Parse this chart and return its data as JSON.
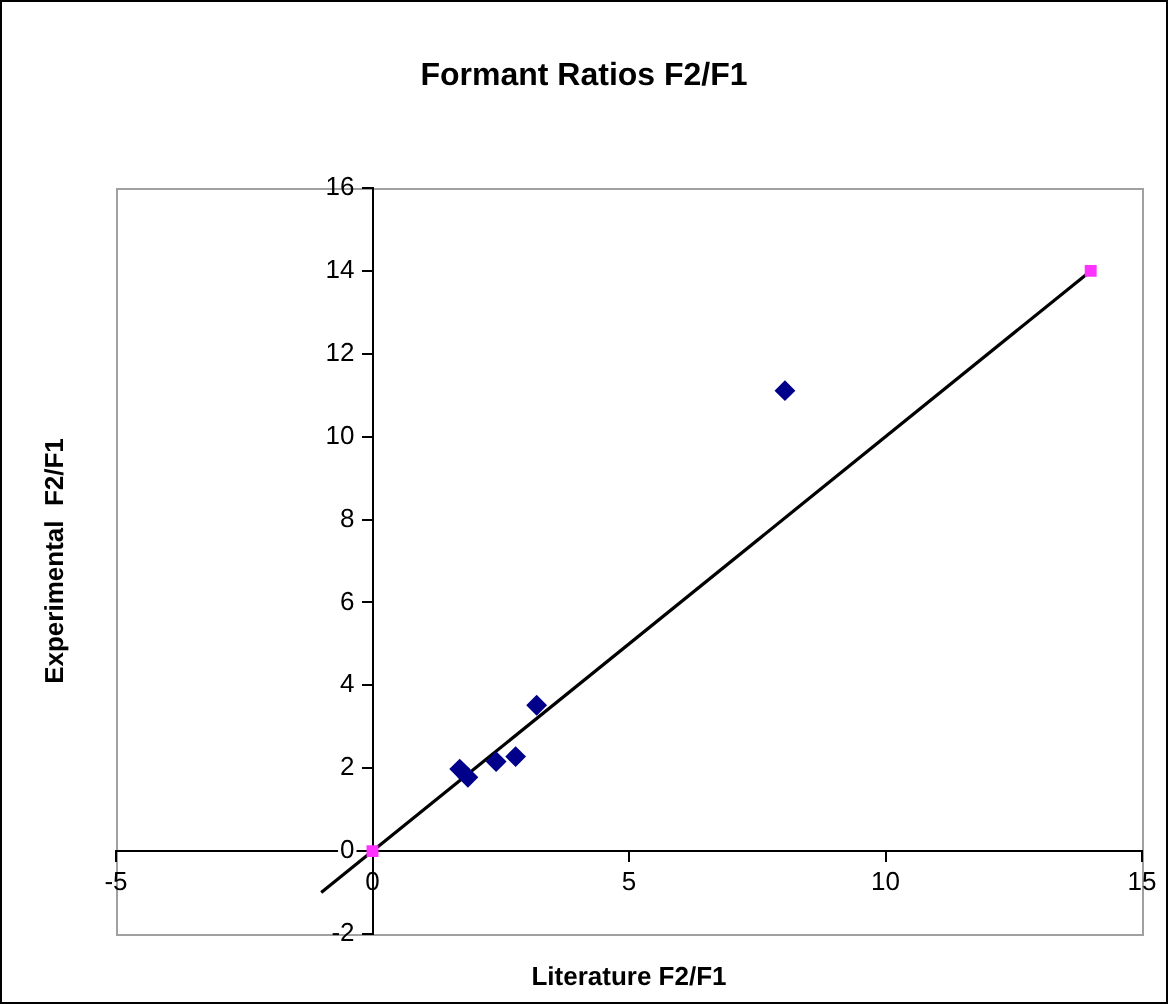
{
  "chart_data": {
    "type": "scatter",
    "title": "Formant Ratios F2/F1",
    "xlabel": "Literature F2/F1",
    "ylabel": "Experimental  F2/F1",
    "xlim": [
      -5,
      15
    ],
    "xticks": [
      -5,
      0,
      5,
      10,
      15
    ],
    "ylim": [
      -2,
      16
    ],
    "yticks": [
      -2,
      0,
      2,
      4,
      6,
      8,
      10,
      12,
      14,
      16
    ],
    "grid": false,
    "legend": false,
    "series": [
      {
        "marker": "diamond",
        "color": "#00008b",
        "x": [
          1.7,
          1.86,
          2.41,
          2.79,
          3.2,
          8.04
        ],
        "values": [
          1.98,
          1.78,
          2.16,
          2.28,
          3.52,
          11.11
        ]
      },
      {
        "marker": "square",
        "color": "#ff33ff",
        "x": [
          0,
          14
        ],
        "values": [
          0,
          14
        ]
      },
      {
        "type": "line",
        "marker": "none",
        "color": "#000000",
        "x": [
          -1,
          14
        ],
        "values": [
          -1,
          14
        ]
      }
    ]
  }
}
